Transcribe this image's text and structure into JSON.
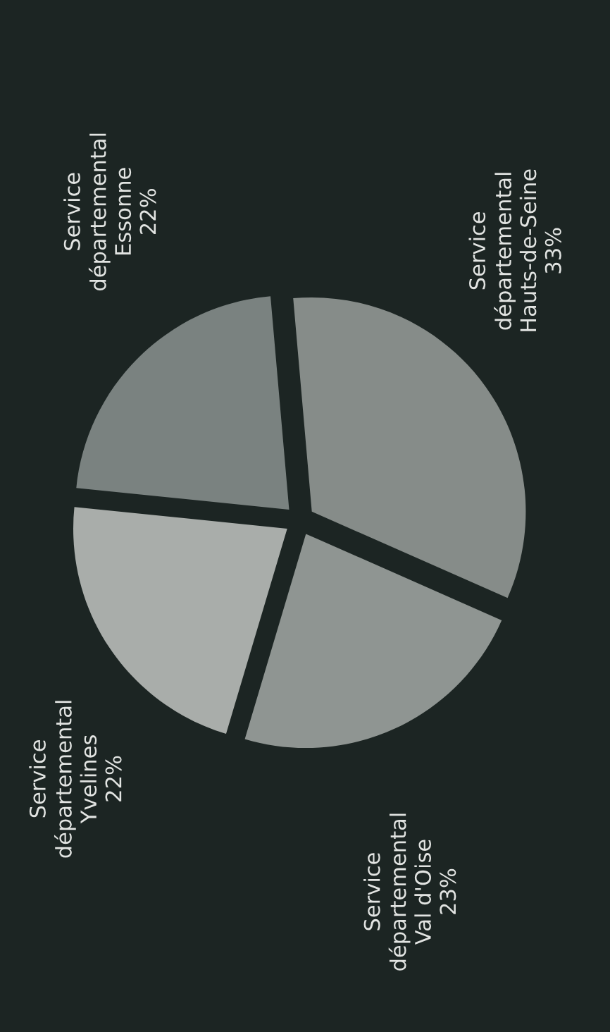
{
  "chart_data": {
    "type": "pie",
    "categories": [
      "Service\ndépartemental\nEssonne",
      "Service\ndépartemental\nYvelines",
      "Service\ndépartemental\nVal d'Oise",
      "Service\ndépartemental\nHauts-de-Seine"
    ],
    "values": [
      22,
      22,
      23,
      33
    ],
    "colors": [
      "#7a8280",
      "#a9adaa",
      "#8f9592",
      "#868c89"
    ],
    "value_labels": [
      "22%",
      "22%",
      "23%",
      "33%"
    ]
  }
}
